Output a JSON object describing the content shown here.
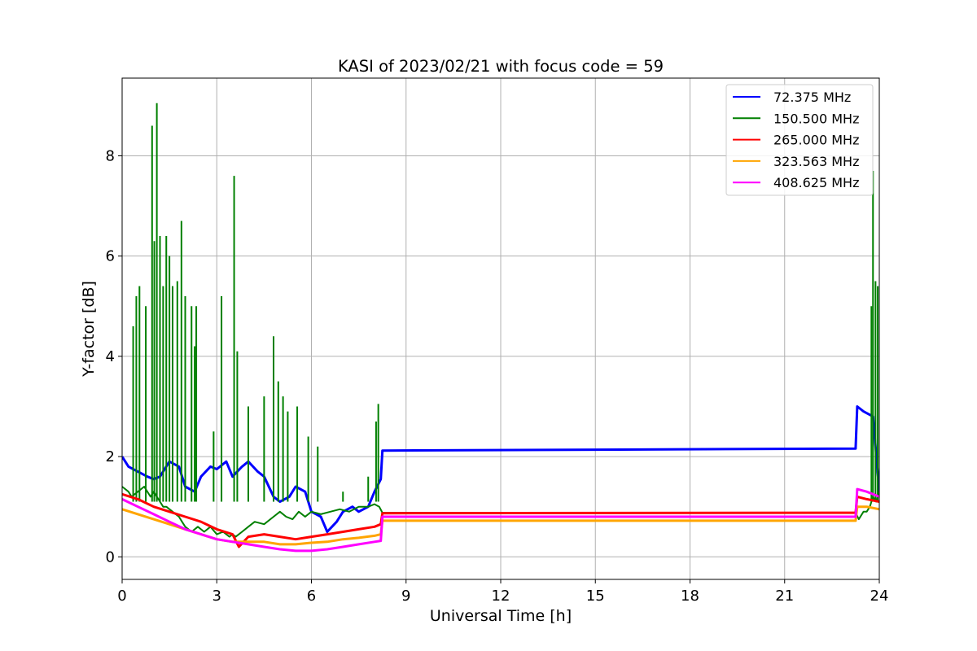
{
  "chart_data": {
    "type": "line",
    "title": "KASI of 2023/02/21 with focus code = 59",
    "xlabel": "Universal Time [h]",
    "ylabel": "Y-factor [dB]",
    "xlim": [
      0,
      24
    ],
    "ylim": [
      -0.45,
      9.55
    ],
    "xticks": [
      0,
      3,
      6,
      9,
      12,
      15,
      18,
      21,
      24
    ],
    "yticks": [
      0,
      2,
      4,
      6,
      8
    ],
    "grid": true,
    "legend_position": "top-right",
    "series": [
      {
        "name": " 72.375 MHz",
        "color": "#0000ff",
        "x": [
          0.0,
          0.2,
          0.5,
          0.8,
          1.0,
          1.2,
          1.5,
          1.8,
          2.0,
          2.3,
          2.5,
          2.8,
          3.0,
          3.3,
          3.5,
          3.8,
          4.0,
          4.3,
          4.5,
          4.8,
          5.0,
          5.3,
          5.5,
          5.8,
          6.0,
          6.3,
          6.5,
          6.8,
          7.0,
          7.3,
          7.5,
          7.8,
          8.0,
          8.2,
          8.25,
          23.25,
          23.3,
          23.5,
          23.8,
          24.0
        ],
        "y": [
          2.0,
          1.8,
          1.7,
          1.6,
          1.55,
          1.6,
          1.9,
          1.8,
          1.4,
          1.3,
          1.6,
          1.8,
          1.75,
          1.9,
          1.6,
          1.8,
          1.9,
          1.7,
          1.6,
          1.2,
          1.1,
          1.2,
          1.4,
          1.3,
          0.9,
          0.8,
          0.5,
          0.7,
          0.9,
          1.0,
          0.9,
          1.0,
          1.3,
          1.55,
          2.12,
          2.16,
          3.0,
          2.9,
          2.8,
          1.3
        ]
      },
      {
        "name": "150.500 MHz",
        "color": "#008000",
        "x": [
          0.0,
          0.2,
          0.3,
          0.5,
          0.7,
          0.9,
          1.0,
          1.1,
          1.2,
          1.3,
          1.4,
          1.6,
          1.8,
          1.9,
          2.0,
          2.2,
          2.4,
          2.6,
          2.8,
          3.0,
          3.2,
          3.4,
          3.5,
          3.6,
          3.8,
          4.0,
          4.2,
          4.5,
          4.8,
          5.0,
          5.2,
          5.4,
          5.6,
          5.8,
          6.0,
          6.3,
          6.6,
          6.9,
          7.2,
          7.5,
          7.8,
          8.0,
          8.15,
          8.25,
          23.25,
          23.35,
          23.5,
          23.6,
          23.7,
          23.8,
          23.9,
          24.0
        ],
        "y": [
          1.4,
          1.3,
          1.2,
          1.3,
          1.4,
          1.2,
          1.3,
          1.2,
          1.1,
          1.0,
          1.0,
          0.9,
          0.8,
          0.7,
          0.6,
          0.5,
          0.6,
          0.5,
          0.6,
          0.45,
          0.5,
          0.4,
          0.45,
          0.4,
          0.5,
          0.6,
          0.7,
          0.65,
          0.8,
          0.9,
          0.8,
          0.75,
          0.9,
          0.8,
          0.9,
          0.85,
          0.9,
          0.95,
          0.9,
          1.0,
          1.0,
          1.05,
          1.0,
          0.88,
          0.88,
          0.75,
          0.9,
          0.9,
          1.0,
          1.2,
          1.1,
          1.3
        ],
        "spikes": [
          {
            "x": 0.35,
            "y": 4.6
          },
          {
            "x": 0.45,
            "y": 5.2
          },
          {
            "x": 0.55,
            "y": 5.4
          },
          {
            "x": 0.75,
            "y": 5.0
          },
          {
            "x": 0.95,
            "y": 8.6
          },
          {
            "x": 1.02,
            "y": 6.3
          },
          {
            "x": 1.1,
            "y": 9.05
          },
          {
            "x": 1.2,
            "y": 6.4
          },
          {
            "x": 1.3,
            "y": 5.4
          },
          {
            "x": 1.4,
            "y": 6.4
          },
          {
            "x": 1.5,
            "y": 6.0
          },
          {
            "x": 1.6,
            "y": 5.4
          },
          {
            "x": 1.75,
            "y": 5.5
          },
          {
            "x": 1.88,
            "y": 6.7
          },
          {
            "x": 2.0,
            "y": 5.2
          },
          {
            "x": 2.2,
            "y": 5.0
          },
          {
            "x": 2.3,
            "y": 4.2
          },
          {
            "x": 2.35,
            "y": 5.0
          },
          {
            "x": 2.9,
            "y": 2.5
          },
          {
            "x": 3.15,
            "y": 5.2
          },
          {
            "x": 3.55,
            "y": 7.6
          },
          {
            "x": 3.65,
            "y": 4.1
          },
          {
            "x": 4.0,
            "y": 3.0
          },
          {
            "x": 4.5,
            "y": 3.2
          },
          {
            "x": 4.8,
            "y": 4.4
          },
          {
            "x": 4.95,
            "y": 3.5
          },
          {
            "x": 5.1,
            "y": 3.2
          },
          {
            "x": 5.25,
            "y": 2.9
          },
          {
            "x": 5.55,
            "y": 3.0
          },
          {
            "x": 5.9,
            "y": 2.4
          },
          {
            "x": 6.2,
            "y": 2.2
          },
          {
            "x": 7.0,
            "y": 1.3
          },
          {
            "x": 7.8,
            "y": 1.6
          },
          {
            "x": 8.05,
            "y": 2.7
          },
          {
            "x": 8.12,
            "y": 3.05
          },
          {
            "x": 23.75,
            "y": 5.0
          },
          {
            "x": 23.8,
            "y": 7.7
          },
          {
            "x": 23.88,
            "y": 5.5
          },
          {
            "x": 23.95,
            "y": 5.4
          }
        ]
      },
      {
        "name": "265.000 MHz",
        "color": "#ff0000",
        "x": [
          0.0,
          0.5,
          1.0,
          1.5,
          2.0,
          2.5,
          3.0,
          3.5,
          3.7,
          4.0,
          4.5,
          5.0,
          5.5,
          6.0,
          6.5,
          7.0,
          7.5,
          8.0,
          8.2,
          8.25,
          23.25,
          23.3,
          23.6,
          24.0
        ],
        "y": [
          1.25,
          1.15,
          1.0,
          0.9,
          0.8,
          0.7,
          0.55,
          0.45,
          0.2,
          0.4,
          0.45,
          0.4,
          0.35,
          0.4,
          0.45,
          0.5,
          0.55,
          0.6,
          0.65,
          0.87,
          0.88,
          1.2,
          1.15,
          1.1
        ]
      },
      {
        "name": "323.563 MHz",
        "color": "#ffa500",
        "x": [
          0.0,
          0.5,
          1.0,
          1.5,
          2.0,
          2.5,
          3.0,
          3.5,
          4.0,
          4.5,
          5.0,
          5.5,
          6.0,
          6.5,
          7.0,
          7.5,
          8.0,
          8.2,
          8.25,
          23.25,
          23.3,
          23.6,
          24.0
        ],
        "y": [
          0.95,
          0.85,
          0.75,
          0.65,
          0.55,
          0.45,
          0.35,
          0.3,
          0.3,
          0.3,
          0.25,
          0.25,
          0.28,
          0.3,
          0.35,
          0.38,
          0.42,
          0.45,
          0.72,
          0.72,
          1.0,
          1.0,
          0.95
        ]
      },
      {
        "name": "408.625 MHz",
        "color": "#ff00ff",
        "x": [
          0.0,
          0.5,
          1.0,
          1.5,
          2.0,
          2.5,
          3.0,
          3.5,
          4.0,
          4.5,
          5.0,
          5.5,
          6.0,
          6.5,
          7.0,
          7.5,
          8.0,
          8.2,
          8.25,
          23.25,
          23.3,
          23.6,
          24.0
        ],
        "y": [
          1.15,
          1.0,
          0.85,
          0.7,
          0.55,
          0.45,
          0.35,
          0.3,
          0.25,
          0.2,
          0.15,
          0.12,
          0.12,
          0.15,
          0.2,
          0.25,
          0.3,
          0.32,
          0.8,
          0.8,
          1.35,
          1.3,
          1.2
        ]
      }
    ]
  }
}
